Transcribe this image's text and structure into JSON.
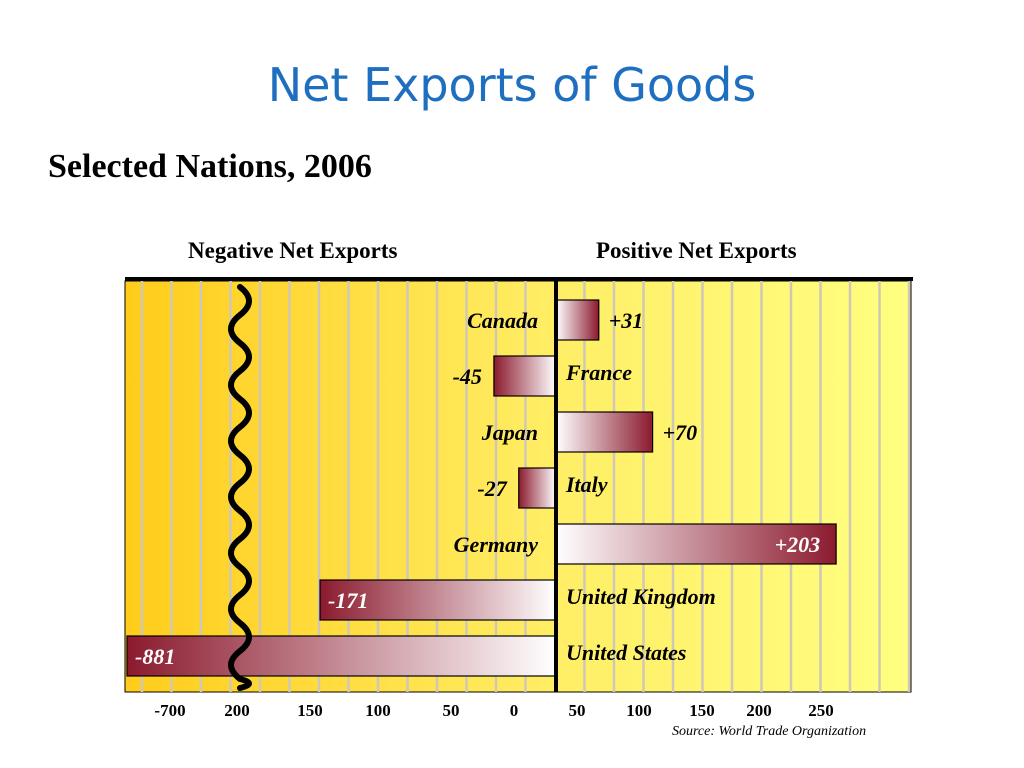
{
  "slide": {
    "title": "Net Exports of Goods",
    "subtitle": "Selected Nations, 2006",
    "negative_heading": "Negative Net Exports",
    "positive_heading": "Positive Net Exports",
    "source": "Source: World Trade Organization"
  },
  "colors": {
    "title": "#1f6fc0",
    "bar_dark": "#8b1a2e",
    "bar_light": "#ffffff",
    "background_left": "#ffcc1a",
    "background_right": "#ffff80"
  },
  "chart_data": {
    "type": "bar",
    "orientation": "horizontal",
    "title": "Net Exports of Goods",
    "subtitle": "Selected Nations, 2006",
    "categories": [
      "Canada",
      "France",
      "Japan",
      "Italy",
      "Germany",
      "United Kingdom",
      "United States"
    ],
    "values": [
      31,
      -45,
      70,
      -27,
      203,
      -171,
      -881
    ],
    "value_labels": [
      "+31",
      "-45",
      "+70",
      "-27",
      "+203",
      "-171",
      "-881"
    ],
    "x_tick_labels": [
      "-700",
      "200",
      "150",
      "100",
      "50",
      "0",
      "50",
      "100",
      "150",
      "200",
      "250"
    ],
    "axis_break": true,
    "grid": true,
    "source": "Source: World Trade Organization"
  }
}
